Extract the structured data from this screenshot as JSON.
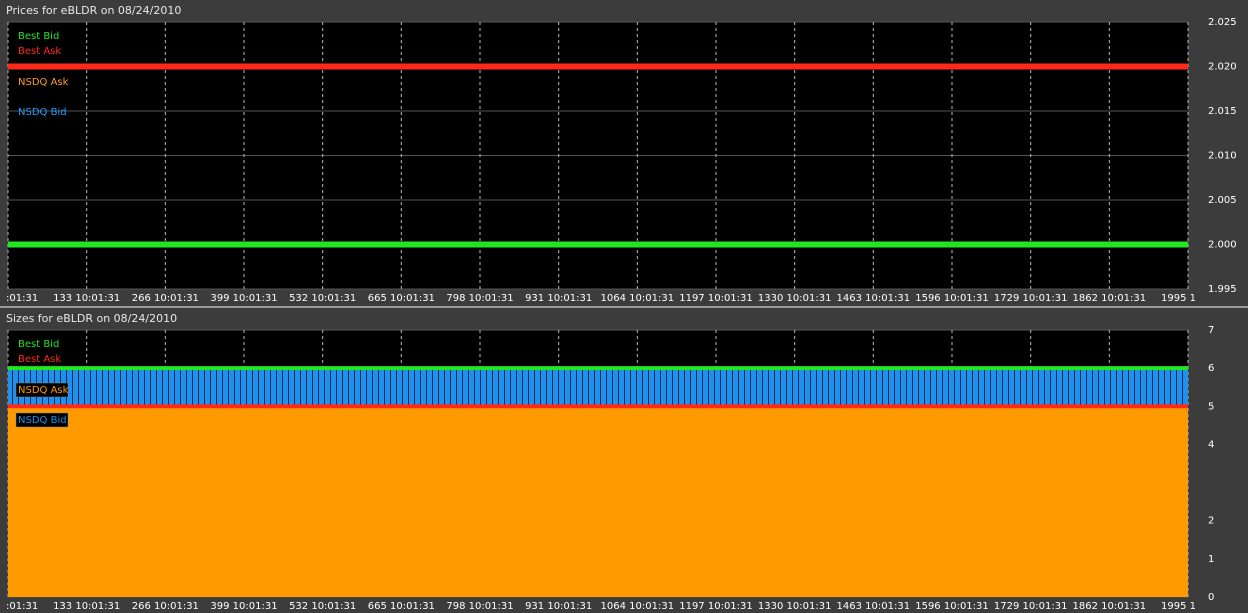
{
  "chart_data": [
    {
      "type": "line",
      "title": "Prices for  eBLDR  on  08/24/2010",
      "x": [
        0,
        1995
      ],
      "xlim": [
        0,
        1995
      ],
      "xticks": [
        {
          "value": 0,
          "label": ":01:31"
        },
        {
          "value": 133,
          "label": "133 10:01:31"
        },
        {
          "value": 266,
          "label": "266 10:01:31"
        },
        {
          "value": 399,
          "label": "399 10:01:31"
        },
        {
          "value": 532,
          "label": "532 10:01:31"
        },
        {
          "value": 665,
          "label": "665 10:01:31"
        },
        {
          "value": 798,
          "label": "798 10:01:31"
        },
        {
          "value": 931,
          "label": "931 10:01:31"
        },
        {
          "value": 1064,
          "label": "1064 10:01:31"
        },
        {
          "value": 1197,
          "label": "1197 10:01:31"
        },
        {
          "value": 1330,
          "label": "1330 10:01:31"
        },
        {
          "value": 1463,
          "label": "1463 10:01:31"
        },
        {
          "value": 1596,
          "label": "1596 10:01:31"
        },
        {
          "value": 1729,
          "label": "1729 10:01:31"
        },
        {
          "value": 1862,
          "label": "1862 10:01:31"
        },
        {
          "value": 1995,
          "label": "1995 1"
        }
      ],
      "ylim": [
        1.995,
        2.025
      ],
      "yticks": [
        1.995,
        {
          "value": 2,
          "label": "2.000"
        },
        2.005,
        {
          "value": 2.01,
          "label": "2.010"
        },
        2.015,
        {
          "value": 2.02,
          "label": "2.020"
        },
        2.025
      ],
      "grid": true,
      "series": [
        {
          "name": "Best Bid",
          "color": "#22e622",
          "values": [
            2,
            2
          ]
        },
        {
          "name": "Best Ask",
          "color": "#ff2a1a",
          "values": [
            2.02,
            2.02
          ]
        },
        {
          "name": "NSDQ Ask",
          "color": "#ff9a2a",
          "values": [
            2.02,
            2.02
          ]
        },
        {
          "name": "NSDQ Bid",
          "color": "#2a9aff",
          "values": [
            2,
            2
          ]
        }
      ]
    },
    {
      "type": "area",
      "title": "Sizes for  eBLDR  on  08/24/2010",
      "x": [
        0,
        1995
      ],
      "xlim": [
        0,
        1995
      ],
      "xticks": [
        {
          "value": 0,
          "label": ":01:31"
        },
        {
          "value": 133,
          "label": "133 10:01:31"
        },
        {
          "value": 266,
          "label": "266 10:01:31"
        },
        {
          "value": 399,
          "label": "399 10:01:31"
        },
        {
          "value": 532,
          "label": "532 10:01:31"
        },
        {
          "value": 665,
          "label": "665 10:01:31"
        },
        {
          "value": 798,
          "label": "798 10:01:31"
        },
        {
          "value": 931,
          "label": "931 10:01:31"
        },
        {
          "value": 1064,
          "label": "1064 10:01:31"
        },
        {
          "value": 1197,
          "label": "1197 10:01:31"
        },
        {
          "value": 1330,
          "label": "1330 10:01:31"
        },
        {
          "value": 1463,
          "label": "1463 10:01:31"
        },
        {
          "value": 1596,
          "label": "1596 10:01:31"
        },
        {
          "value": 1729,
          "label": "1729 10:01:31"
        },
        {
          "value": 1862,
          "label": "1862 10:01:31"
        },
        {
          "value": 1995,
          "label": "1995 1"
        }
      ],
      "ylim": [
        0,
        7
      ],
      "yticks": [
        0,
        1,
        2,
        4,
        5,
        6,
        7
      ],
      "grid": true,
      "series": [
        {
          "name": "Best Bid",
          "color": "#22e622",
          "values": [
            6,
            6
          ]
        },
        {
          "name": "Best Ask",
          "color": "#ff2a1a",
          "values": [
            5,
            5
          ]
        },
        {
          "name": "NSDQ Ask",
          "color": "#ff9a00",
          "values": [
            5,
            5
          ],
          "fill": true
        },
        {
          "name": "NSDQ Bid",
          "color": "#1e90ee",
          "values": [
            6,
            6
          ],
          "fill": true
        }
      ]
    }
  ]
}
